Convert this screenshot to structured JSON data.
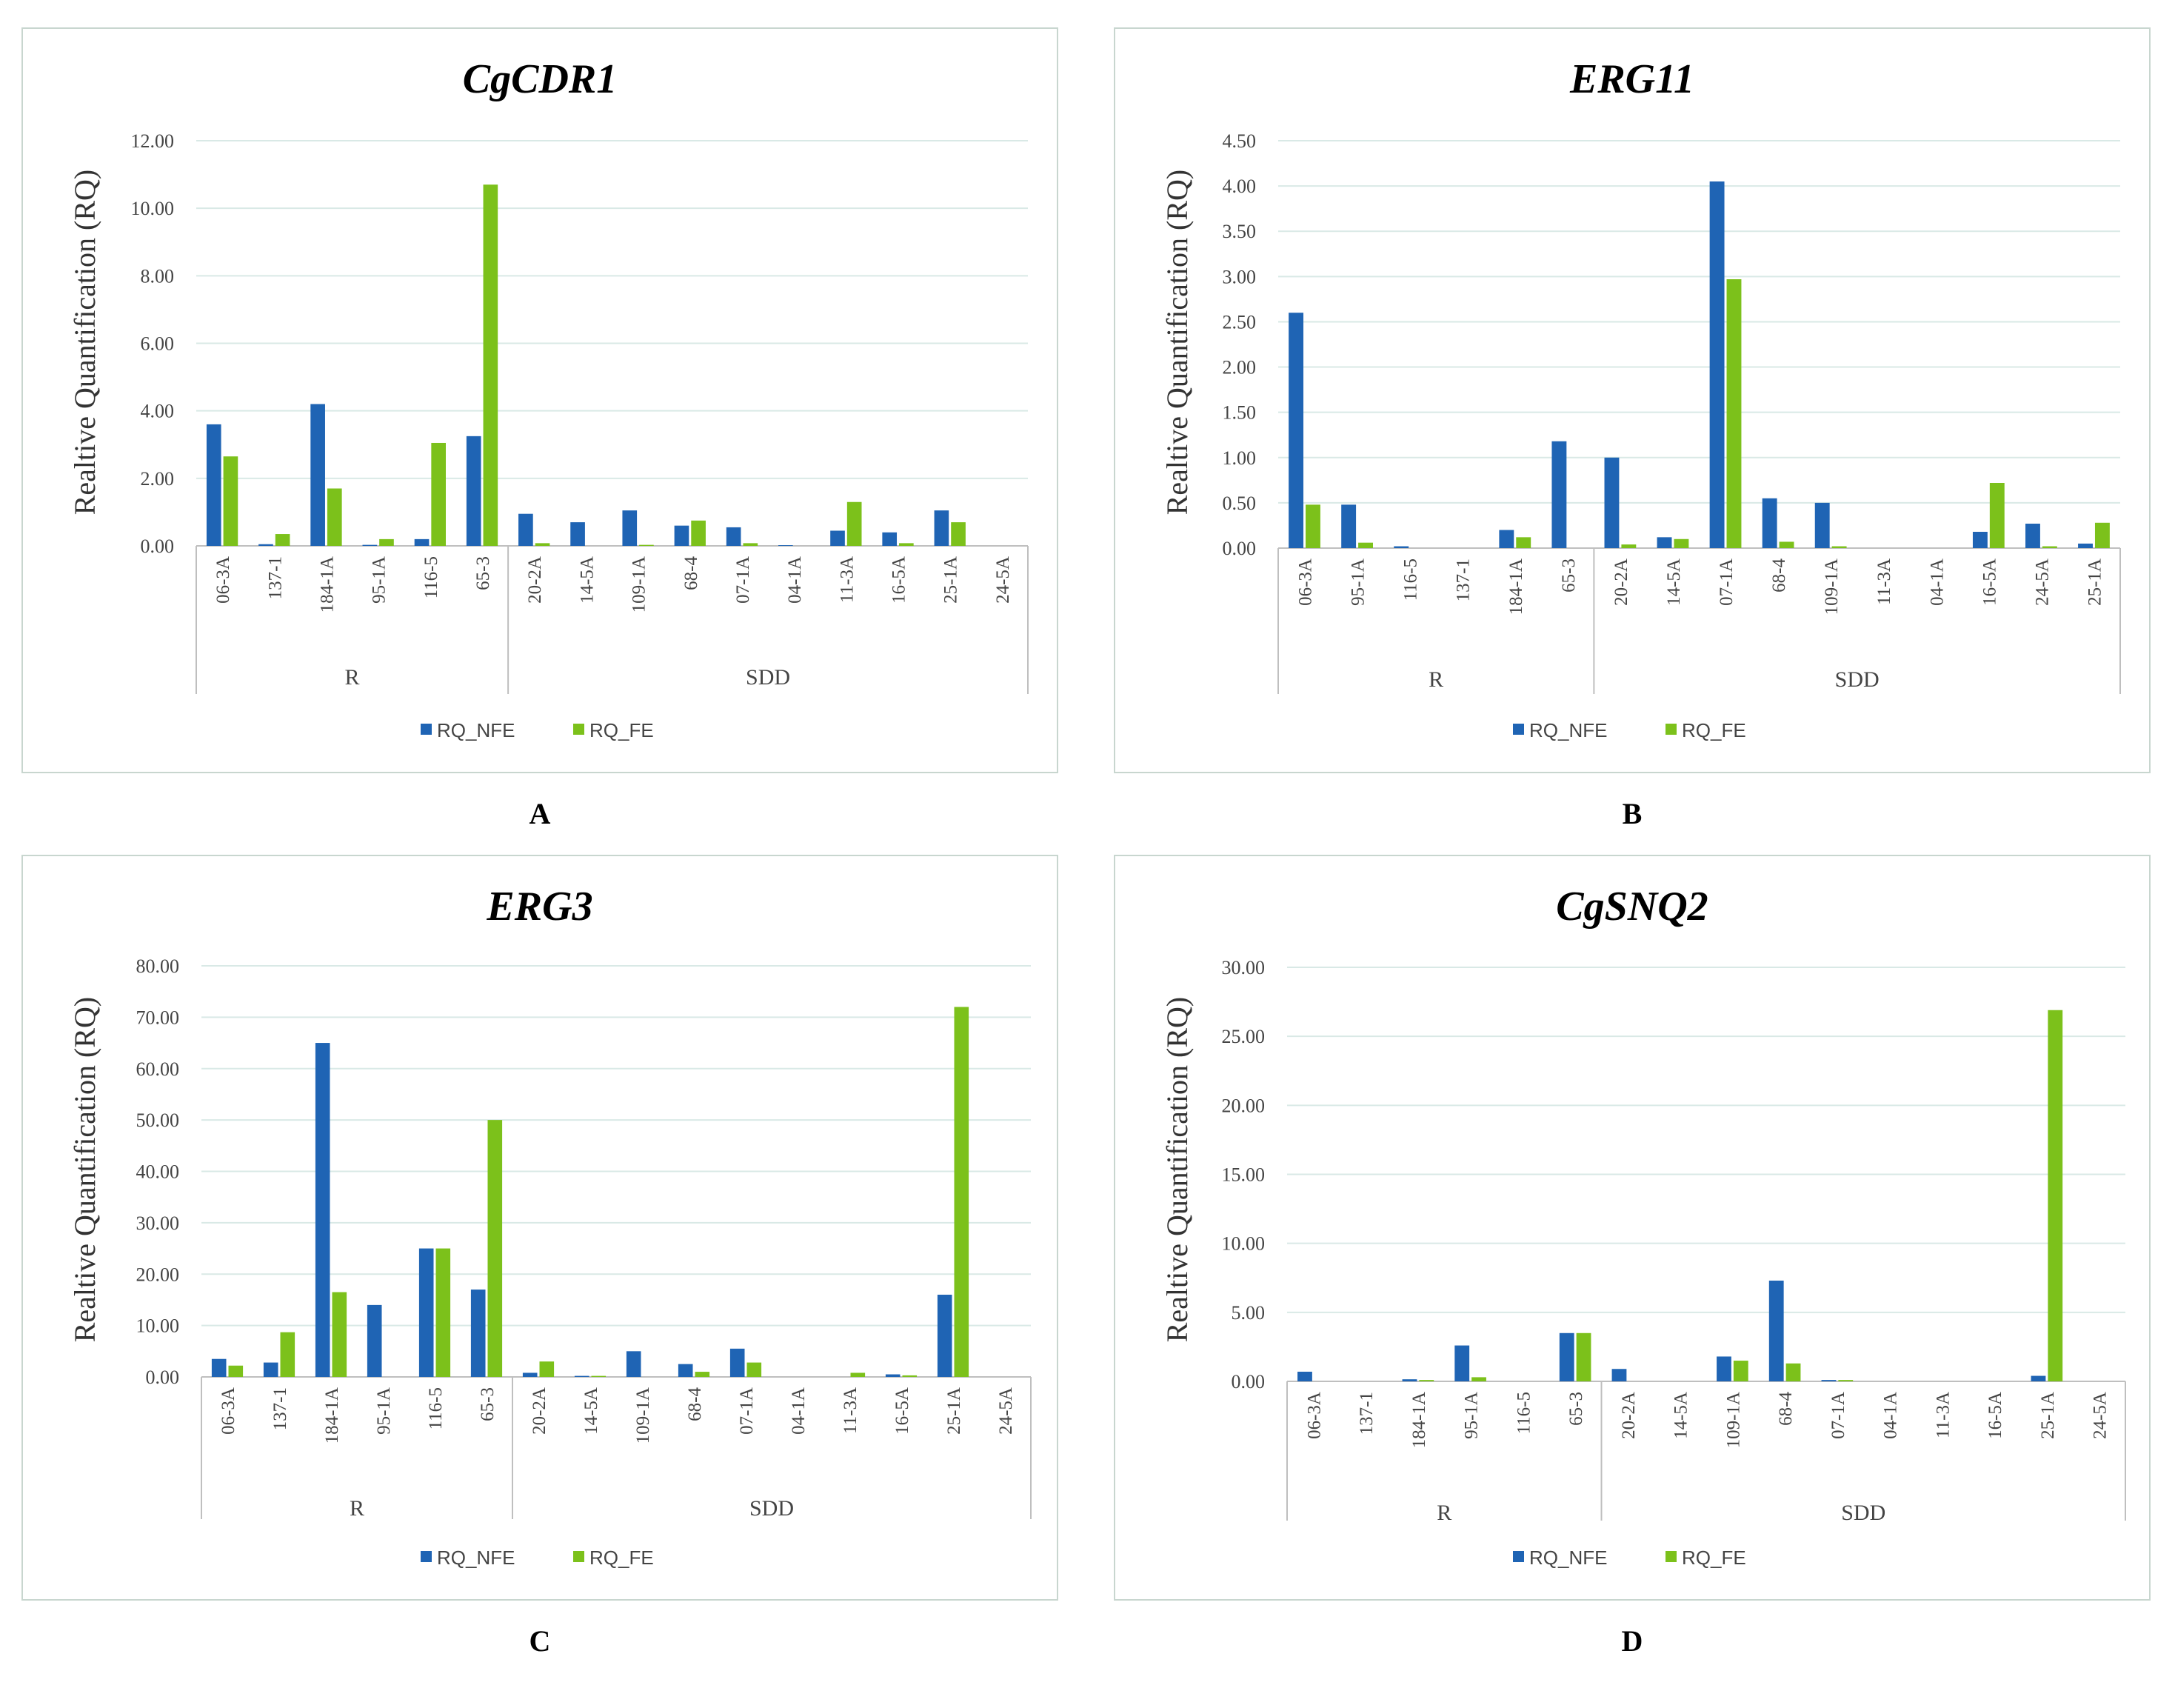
{
  "colors": {
    "nfe": "#1f64b4",
    "fe": "#7cc11b",
    "grid": "#d9e9e6",
    "axis": "#bfbfbf",
    "frame": "#c8d6cf"
  },
  "chart_data": [
    {
      "panel": "A",
      "title": "CgCDR1",
      "type": "bar",
      "ylabel": "Realtive Quantification (RQ)",
      "ylim": [
        0,
        12
      ],
      "yticks": [
        "0.00",
        "2.00",
        "4.00",
        "6.00",
        "8.00",
        "10.00",
        "12.00"
      ],
      "categories": [
        "06-3A",
        "137-1",
        "184-1A",
        "95-1A",
        "116-5",
        "65-3",
        "20-2A",
        "14-5A",
        "109-1A",
        "68-4",
        "07-1A",
        "04-1A",
        "11-3A",
        "16-5A",
        "25-1A",
        "24-5A"
      ],
      "groups": [
        {
          "name": "R",
          "count": 6
        },
        {
          "name": "SDD",
          "count": 10
        }
      ],
      "series": [
        {
          "name": "RQ_NFE",
          "values": [
            3.6,
            0.05,
            4.2,
            0.03,
            0.2,
            3.25,
            0.95,
            0.7,
            1.05,
            0.6,
            0.55,
            0.02,
            0.45,
            0.4,
            1.05,
            0.0
          ]
        },
        {
          "name": "RQ_FE",
          "values": [
            2.65,
            0.35,
            1.7,
            0.2,
            3.05,
            10.7,
            0.08,
            0.0,
            0.03,
            0.75,
            0.08,
            0.0,
            1.3,
            0.08,
            0.7,
            0.0
          ]
        }
      ]
    },
    {
      "panel": "B",
      "title": "ERG11",
      "type": "bar",
      "ylabel": "Realtive Quantification (RQ)",
      "ylim": [
        0,
        4.5
      ],
      "yticks": [
        "0.00",
        "0.50",
        "1.00",
        "1.50",
        "2.00",
        "2.50",
        "3.00",
        "3.50",
        "4.00",
        "4.50"
      ],
      "categories": [
        "06-3A",
        "95-1A",
        "116-5",
        "137-1",
        "184-1A",
        "65-3",
        "20-2A",
        "14-5A",
        "07-1A",
        "68-4",
        "109-1A",
        "11-3A",
        "04-1A",
        "16-5A",
        "24-5A",
        "25-1A"
      ],
      "groups": [
        {
          "name": "R",
          "count": 6
        },
        {
          "name": "SDD",
          "count": 10
        }
      ],
      "series": [
        {
          "name": "RQ_NFE",
          "values": [
            2.6,
            0.48,
            0.02,
            0.0,
            0.2,
            1.18,
            1.0,
            0.12,
            4.05,
            0.55,
            0.5,
            0.0,
            0.0,
            0.18,
            0.27,
            0.05
          ]
        },
        {
          "name": "RQ_FE",
          "values": [
            0.48,
            0.06,
            0.0,
            0.0,
            0.12,
            0.0,
            0.04,
            0.1,
            2.97,
            0.07,
            0.02,
            0.0,
            0.0,
            0.72,
            0.02,
            0.28
          ]
        }
      ]
    },
    {
      "panel": "C",
      "title": "ERG3",
      "type": "bar",
      "ylabel": "Realtive Quantification (RQ)",
      "ylim": [
        0,
        80
      ],
      "yticks": [
        "0.00",
        "10.00",
        "20.00",
        "30.00",
        "40.00",
        "50.00",
        "60.00",
        "70.00",
        "80.00"
      ],
      "categories": [
        "06-3A",
        "137-1",
        "184-1A",
        "95-1A",
        "116-5",
        "65-3",
        "20-2A",
        "14-5A",
        "109-1A",
        "68-4",
        "07-1A",
        "04-1A",
        "11-3A",
        "16-5A",
        "25-1A",
        "24-5A"
      ],
      "groups": [
        {
          "name": "R",
          "count": 6
        },
        {
          "name": "SDD",
          "count": 10
        }
      ],
      "series": [
        {
          "name": "RQ_NFE",
          "values": [
            3.5,
            2.8,
            65,
            14,
            25,
            17,
            0.8,
            0.2,
            5,
            2.5,
            5.5,
            0.0,
            0.0,
            0.5,
            16,
            0.0
          ]
        },
        {
          "name": "RQ_FE",
          "values": [
            2.2,
            8.7,
            16.5,
            0.0,
            25,
            50,
            3.0,
            0.2,
            0.0,
            1.0,
            2.8,
            0.0,
            0.8,
            0.3,
            72,
            0.0
          ]
        }
      ]
    },
    {
      "panel": "D",
      "title": "CgSNQ2",
      "type": "bar",
      "ylabel": "Realtive Quantification (RQ)",
      "ylim": [
        0,
        30
      ],
      "yticks": [
        "0.00",
        "5.00",
        "10.00",
        "15.00",
        "20.00",
        "25.00",
        "30.00"
      ],
      "categories": [
        "06-3A",
        "137-1",
        "184-1A",
        "95-1A",
        "116-5",
        "65-3",
        "20-2A",
        "14-5A",
        "109-1A",
        "68-4",
        "07-1A",
        "04-1A",
        "11-3A",
        "16-5A",
        "25-1A",
        "24-5A"
      ],
      "groups": [
        {
          "name": "R",
          "count": 6
        },
        {
          "name": "SDD",
          "count": 10
        }
      ],
      "series": [
        {
          "name": "RQ_NFE",
          "values": [
            0.7,
            0.0,
            0.15,
            2.6,
            0.0,
            3.5,
            0.9,
            0.0,
            1.8,
            7.3,
            0.1,
            0.0,
            0.0,
            0.0,
            0.4,
            0.0
          ]
        },
        {
          "name": "RQ_FE",
          "values": [
            0.0,
            0.0,
            0.1,
            0.3,
            0.0,
            3.5,
            0.0,
            0.0,
            1.5,
            1.3,
            0.1,
            0.0,
            0.0,
            0.0,
            26.9,
            0.0
          ]
        }
      ]
    }
  ]
}
